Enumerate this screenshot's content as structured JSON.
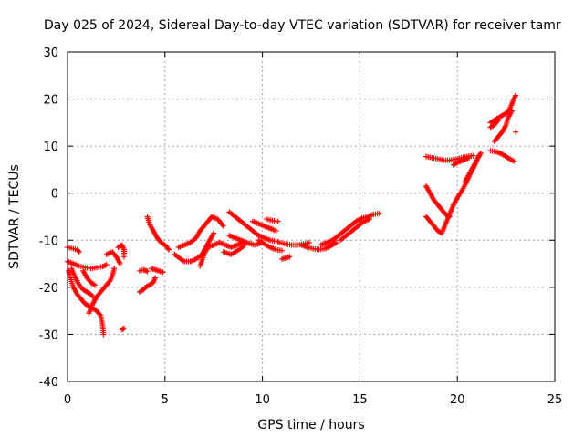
{
  "chart_data": {
    "type": "scatter",
    "title": "Day 025 of 2024, Sidereal Day-to-day VTEC variation (SDTVAR) for receiver tamr",
    "xlabel": "GPS time / hours",
    "ylabel": "SDTVAR / TECUs",
    "xlim": [
      0,
      25
    ],
    "ylim": [
      -40,
      30
    ],
    "x_ticks": [
      0,
      5,
      10,
      15,
      20,
      25
    ],
    "x_tick_labels": [
      "0",
      "5",
      "10",
      "15",
      "20",
      "25"
    ],
    "y_ticks": [
      -40,
      -30,
      -20,
      -10,
      0,
      10,
      20,
      30
    ],
    "y_tick_labels": [
      "-40",
      "-30",
      "-20",
      "-10",
      "0",
      "10",
      "20",
      "30"
    ],
    "grid": true,
    "marker": "+",
    "color": "#ff0000",
    "tracks": [
      [
        [
          0.0,
          -11.5
        ],
        [
          0.3,
          -11.8
        ],
        [
          0.5,
          -12.0
        ],
        [
          0.6,
          -12.5
        ]
      ],
      [
        [
          0.0,
          -14.5
        ],
        [
          0.3,
          -15.0
        ],
        [
          0.6,
          -15.5
        ],
        [
          0.9,
          -15.8
        ],
        [
          1.2,
          -16.0
        ],
        [
          1.5,
          -15.8
        ],
        [
          1.8,
          -15.6
        ],
        [
          2.0,
          -15.2
        ]
      ],
      [
        [
          0.05,
          -16.5
        ],
        [
          0.15,
          -18.0
        ],
        [
          0.3,
          -20.0
        ],
        [
          0.5,
          -21.5
        ],
        [
          0.7,
          -22.5
        ],
        [
          0.9,
          -23.5
        ],
        [
          1.1,
          -24.0
        ],
        [
          1.3,
          -24.5
        ],
        [
          1.5,
          -25.0
        ],
        [
          1.7,
          -26.0
        ],
        [
          1.8,
          -28.0
        ],
        [
          1.85,
          -30.0
        ]
      ],
      [
        [
          0.2,
          -16.0
        ],
        [
          0.4,
          -18.0
        ],
        [
          0.6,
          -19.5
        ],
        [
          0.8,
          -20.5
        ],
        [
          1.0,
          -21.0
        ],
        [
          1.2,
          -21.5
        ],
        [
          1.3,
          -22.0
        ]
      ],
      [
        [
          0.8,
          -16.5
        ],
        [
          1.0,
          -18.0
        ],
        [
          1.2,
          -19.0
        ],
        [
          1.4,
          -19.5
        ]
      ],
      [
        [
          1.1,
          -25.5
        ],
        [
          1.3,
          -23.5
        ],
        [
          1.5,
          -22.0
        ],
        [
          1.7,
          -21.0
        ],
        [
          1.9,
          -20.0
        ],
        [
          2.0,
          -19.5
        ],
        [
          2.2,
          -18.5
        ],
        [
          2.3,
          -17.5
        ],
        [
          2.4,
          -16.0
        ]
      ],
      [
        [
          2.0,
          -13.0
        ],
        [
          2.3,
          -12.5
        ],
        [
          2.5,
          -13.5
        ],
        [
          2.7,
          -15.0
        ]
      ],
      [
        [
          2.6,
          -11.5
        ],
        [
          2.8,
          -11.0
        ],
        [
          2.9,
          -12.0
        ],
        [
          2.9,
          -13.5
        ]
      ],
      [
        [
          2.8,
          -29.0
        ],
        [
          2.9,
          -28.7
        ]
      ],
      [
        [
          3.7,
          -16.5
        ],
        [
          3.9,
          -16.3
        ],
        [
          4.1,
          -16.6
        ]
      ],
      [
        [
          3.7,
          -21.0
        ],
        [
          3.9,
          -20.5
        ],
        [
          4.0,
          -20.0
        ],
        [
          4.2,
          -19.5
        ],
        [
          4.4,
          -19.0
        ],
        [
          4.5,
          -18.0
        ]
      ],
      [
        [
          4.3,
          -16.0
        ],
        [
          4.6,
          -16.4
        ],
        [
          4.9,
          -16.8
        ]
      ],
      [
        [
          4.1,
          -5.0
        ],
        [
          4.2,
          -6.5
        ],
        [
          4.4,
          -8.0
        ],
        [
          4.6,
          -9.5
        ],
        [
          4.8,
          -10.5
        ],
        [
          5.0,
          -11.0
        ],
        [
          5.2,
          -12.0
        ]
      ],
      [
        [
          5.5,
          -13.0
        ],
        [
          5.8,
          -14.0
        ],
        [
          6.0,
          -14.5
        ],
        [
          6.3,
          -14.5
        ],
        [
          6.6,
          -14.0
        ],
        [
          6.9,
          -13.0
        ],
        [
          7.1,
          -11.5
        ],
        [
          7.3,
          -10.0
        ],
        [
          7.5,
          -8.5
        ]
      ],
      [
        [
          5.7,
          -11.5
        ],
        [
          6.0,
          -11.0
        ],
        [
          6.3,
          -10.5
        ],
        [
          6.6,
          -9.5
        ],
        [
          6.8,
          -8.0
        ],
        [
          7.0,
          -7.0
        ],
        [
          7.2,
          -6.0
        ],
        [
          7.4,
          -5.0
        ],
        [
          7.7,
          -5.5
        ],
        [
          8.0,
          -7.0
        ]
      ],
      [
        [
          6.8,
          -15.5
        ],
        [
          7.0,
          -13.0
        ],
        [
          7.2,
          -11.5
        ],
        [
          7.5,
          -11.0
        ],
        [
          7.8,
          -10.5
        ],
        [
          8.1,
          -11.0
        ],
        [
          8.4,
          -11.5
        ],
        [
          8.7,
          -11.0
        ],
        [
          9.0,
          -10.5
        ]
      ],
      [
        [
          8.0,
          -12.5
        ],
        [
          8.4,
          -13.0
        ],
        [
          8.8,
          -12.0
        ],
        [
          9.1,
          -11.0
        ]
      ],
      [
        [
          8.3,
          -9.0
        ],
        [
          8.6,
          -9.5
        ],
        [
          8.9,
          -10.0
        ],
        [
          9.2,
          -10.5
        ],
        [
          9.6,
          -11.0
        ],
        [
          10.0,
          -10.5
        ]
      ],
      [
        [
          8.3,
          -4.0
        ],
        [
          8.6,
          -5.0
        ],
        [
          8.9,
          -6.0
        ],
        [
          9.2,
          -7.0
        ],
        [
          9.5,
          -8.0
        ],
        [
          9.8,
          -9.0
        ],
        [
          10.1,
          -9.5
        ],
        [
          10.4,
          -10.0
        ],
        [
          10.8,
          -10.3
        ]
      ],
      [
        [
          9.5,
          -6.0
        ],
        [
          9.8,
          -6.5
        ],
        [
          10.1,
          -7.0
        ],
        [
          10.4,
          -7.5
        ],
        [
          10.7,
          -8.0
        ]
      ],
      [
        [
          9.8,
          -10.0
        ],
        [
          10.1,
          -10.8
        ],
        [
          10.4,
          -11.5
        ],
        [
          10.7,
          -12.0
        ],
        [
          11.0,
          -12.2
        ]
      ],
      [
        [
          10.2,
          -5.5
        ],
        [
          10.5,
          -5.8
        ],
        [
          10.8,
          -6.0
        ]
      ],
      [
        [
          10.9,
          -10.5
        ],
        [
          11.2,
          -10.8
        ],
        [
          11.5,
          -11.0
        ],
        [
          11.8,
          -11.0
        ],
        [
          12.1,
          -10.8
        ],
        [
          12.4,
          -10.5
        ]
      ],
      [
        [
          11.0,
          -14.0
        ],
        [
          11.4,
          -13.5
        ]
      ],
      [
        [
          12.0,
          -11.0
        ],
        [
          12.3,
          -11.5
        ],
        [
          12.6,
          -11.8
        ],
        [
          12.9,
          -12.0
        ],
        [
          13.2,
          -11.8
        ],
        [
          13.5,
          -11.2
        ],
        [
          13.8,
          -10.5
        ]
      ],
      [
        [
          13.0,
          -11.0
        ],
        [
          13.3,
          -10.5
        ],
        [
          13.6,
          -10.0
        ],
        [
          13.9,
          -9.0
        ],
        [
          14.2,
          -8.0
        ],
        [
          14.5,
          -7.0
        ],
        [
          14.8,
          -6.0
        ],
        [
          15.1,
          -5.3
        ],
        [
          15.4,
          -5.0
        ],
        [
          15.7,
          -4.5
        ],
        [
          16.0,
          -4.3
        ]
      ],
      [
        [
          14.0,
          -10.0
        ],
        [
          14.3,
          -9.0
        ],
        [
          14.6,
          -8.0
        ],
        [
          14.9,
          -7.0
        ],
        [
          15.2,
          -6.0
        ],
        [
          15.5,
          -5.5
        ]
      ],
      [
        [
          18.4,
          7.8
        ],
        [
          18.7,
          7.5
        ],
        [
          19.0,
          7.3
        ],
        [
          19.3,
          7.0
        ],
        [
          19.6,
          7.0
        ],
        [
          19.9,
          7.2
        ],
        [
          20.2,
          7.5
        ],
        [
          20.5,
          7.8
        ],
        [
          20.8,
          8.0
        ]
      ],
      [
        [
          18.4,
          -5.0
        ],
        [
          18.6,
          -6.0
        ],
        [
          18.8,
          -7.0
        ],
        [
          19.0,
          -8.0
        ],
        [
          19.2,
          -8.5
        ],
        [
          19.4,
          -6.5
        ],
        [
          19.6,
          -4.5
        ],
        [
          19.8,
          -2.5
        ],
        [
          20.0,
          -1.0
        ],
        [
          20.3,
          1.0
        ],
        [
          20.6,
          3.5
        ],
        [
          20.9,
          6.0
        ],
        [
          21.1,
          8.0
        ]
      ],
      [
        [
          18.4,
          1.5
        ],
        [
          18.6,
          0.0
        ],
        [
          18.8,
          -1.5
        ],
        [
          19.0,
          -2.5
        ],
        [
          19.2,
          -3.5
        ],
        [
          19.4,
          -4.5
        ],
        [
          19.6,
          -5.0
        ]
      ],
      [
        [
          19.8,
          6.0
        ],
        [
          20.0,
          6.5
        ],
        [
          20.3,
          7.0
        ],
        [
          20.6,
          7.5
        ]
      ],
      [
        [
          20.4,
          2.5
        ],
        [
          20.6,
          4.0
        ],
        [
          20.8,
          5.5
        ],
        [
          21.0,
          7.0
        ],
        [
          21.2,
          8.5
        ]
      ],
      [
        [
          21.7,
          9.0
        ],
        [
          22.0,
          8.8
        ],
        [
          22.3,
          8.3
        ],
        [
          22.6,
          7.5
        ],
        [
          22.9,
          6.8
        ]
      ],
      [
        [
          21.7,
          15.0
        ],
        [
          21.9,
          15.5
        ],
        [
          22.1,
          16.0
        ],
        [
          22.3,
          16.5
        ],
        [
          22.5,
          17.0
        ],
        [
          22.7,
          18.0
        ],
        [
          22.9,
          20.0
        ],
        [
          23.0,
          20.8
        ]
      ],
      [
        [
          21.9,
          11.0
        ],
        [
          22.1,
          12.0
        ],
        [
          22.3,
          13.0
        ],
        [
          22.5,
          14.5
        ],
        [
          22.6,
          16.0
        ],
        [
          22.8,
          17.5
        ]
      ],
      [
        [
          21.7,
          14.0
        ],
        [
          21.9,
          14.5
        ],
        [
          22.1,
          15.5
        ]
      ],
      [
        [
          23.0,
          13.0
        ]
      ]
    ]
  }
}
